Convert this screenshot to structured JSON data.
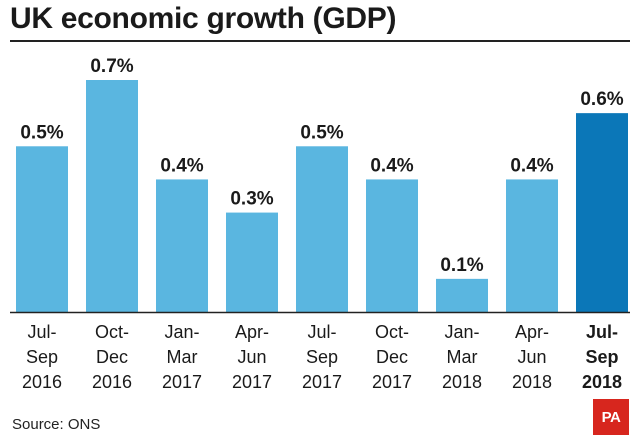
{
  "chart_data": {
    "type": "bar",
    "title": "UK economic growth (GDP)",
    "categories": [
      [
        "Jul-",
        "Sep",
        "2016"
      ],
      [
        "Oct-",
        "Dec",
        "2016"
      ],
      [
        "Jan-",
        "Mar",
        "2017"
      ],
      [
        "Apr-",
        "Jun",
        "2017"
      ],
      [
        "Jul-",
        "Sep",
        "2017"
      ],
      [
        "Oct-",
        "Dec",
        "2017"
      ],
      [
        "Jan-",
        "Mar",
        "2018"
      ],
      [
        "Apr-",
        "Jun",
        "2018"
      ],
      [
        "Jul-",
        "Sep",
        "2018"
      ]
    ],
    "values": [
      0.5,
      0.7,
      0.4,
      0.3,
      0.5,
      0.4,
      0.1,
      0.4,
      0.6
    ],
    "value_labels": [
      "0.5%",
      "0.7%",
      "0.4%",
      "0.3%",
      "0.5%",
      "0.4%",
      "0.1%",
      "0.4%",
      "0.6%"
    ],
    "ylim": [
      0,
      0.7
    ],
    "grid": false,
    "highlight_index": 8,
    "colors": {
      "bar": "#5ab6e0",
      "highlight": "#0b77b8",
      "axis": "#222222",
      "text": "#1a1a1a"
    }
  },
  "footer": {
    "source": "Source: ONS",
    "logo": "PA"
  }
}
